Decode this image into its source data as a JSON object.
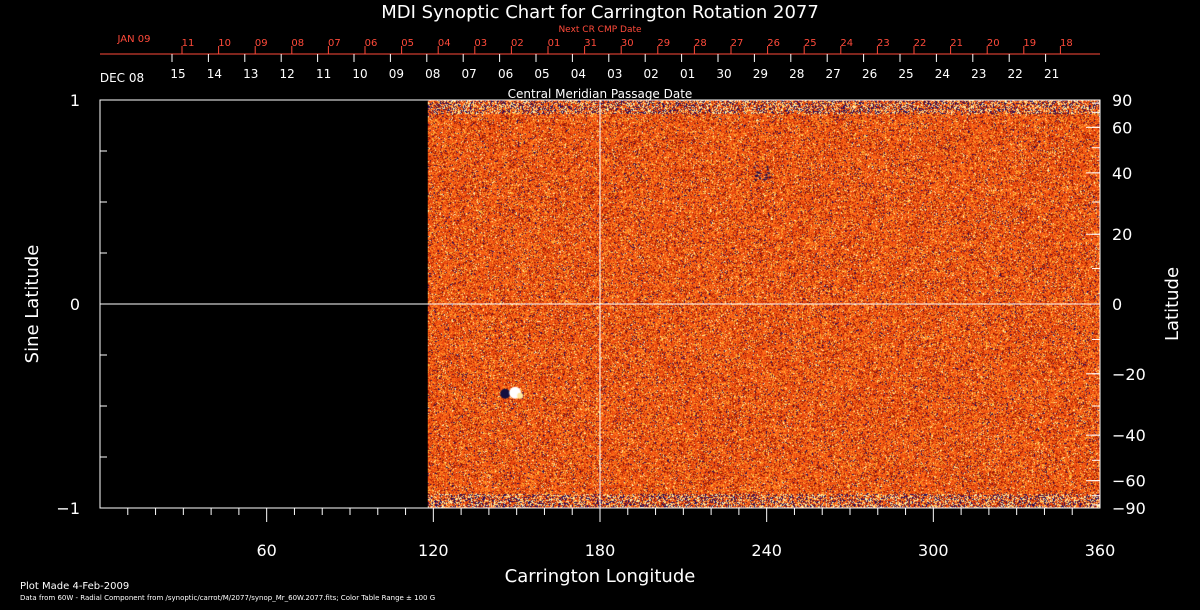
{
  "chart_data": {
    "type": "heatmap",
    "title": "MDI Synoptic Chart for Carrington Rotation 2077",
    "xlabel": "Carrington Longitude",
    "ylabel_left": "Sine Latitude",
    "ylabel_right": "Latitude",
    "xlim": [
      0,
      360
    ],
    "ylim": [
      -1,
      1
    ],
    "x_ticks": [
      60,
      120,
      180,
      240,
      300,
      360
    ],
    "y_ticks_left": [
      {
        "value": 1,
        "label": "1"
      },
      {
        "value": 0,
        "label": "0"
      },
      {
        "value": -1,
        "label": "−1"
      }
    ],
    "y_ticks_right": [
      {
        "deg": 90,
        "label": "90"
      },
      {
        "deg": 60,
        "label": "60"
      },
      {
        "deg": 40,
        "label": "40"
      },
      {
        "deg": 20,
        "label": "20"
      },
      {
        "deg": 0,
        "label": "0"
      },
      {
        "deg": -20,
        "label": "−20"
      },
      {
        "deg": -40,
        "label": "−40"
      },
      {
        "deg": -60,
        "label": "−60"
      },
      {
        "deg": -90,
        "label": "−90"
      }
    ],
    "data_coverage_longitude": [
      118,
      360
    ],
    "crosshair": {
      "longitude": 180,
      "sine_latitude": 0
    },
    "colormap": [
      "#1e0a55",
      "#a01800",
      "#ff5a10",
      "#ffc040",
      "#ffffff"
    ],
    "color_table_range": "± 100 G",
    "features": [
      {
        "type": "bipolar-region",
        "longitude": 148,
        "sine_latitude": -0.44
      },
      {
        "type": "small-negative-cluster",
        "longitude": 238,
        "sine_latitude": 0.65
      }
    ],
    "cmp_date_label": "Central Meridian Passage Date",
    "cmp_month_label": "DEC 08",
    "cmp_dates": [
      "15",
      "14",
      "13",
      "12",
      "11",
      "10",
      "09",
      "08",
      "07",
      "06",
      "05",
      "04",
      "03",
      "02",
      "01",
      "30",
      "29",
      "28",
      "27",
      "26",
      "25",
      "24",
      "23",
      "22",
      "21"
    ],
    "next_cr_label": "Next CR CMP Date",
    "next_cr_month_label": "JAN 09",
    "next_cr_dates": [
      "11",
      "10",
      "09",
      "08",
      "07",
      "06",
      "05",
      "04",
      "03",
      "02",
      "01",
      "31",
      "30",
      "29",
      "28",
      "27",
      "26",
      "25",
      "24",
      "23",
      "22",
      "21",
      "20",
      "19",
      "18"
    ]
  },
  "footer": {
    "plot_made": "Plot Made  4-Feb-2009",
    "data_note": "Data from 60W - Radial Component from /synoptic/carrot/M/2077/synop_Mr_60W.2077.fits; Color Table Range ± 100 G"
  },
  "colors": {
    "background": "#000000",
    "axis": "#ffffff",
    "next_cr_red": "#ff4a3a"
  }
}
